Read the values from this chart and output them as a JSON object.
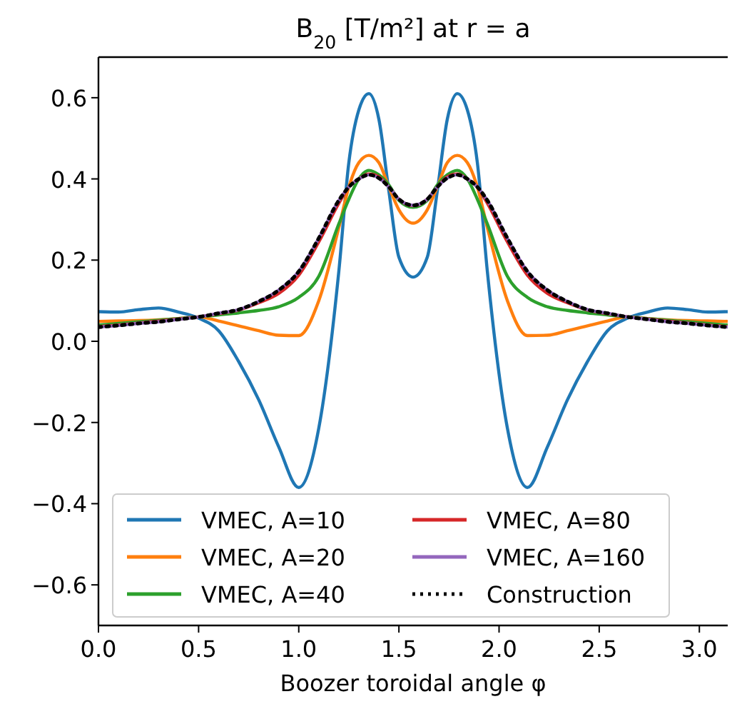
{
  "chart_data": {
    "type": "line",
    "title": "B$_{20}$ [T/m²] at r = a",
    "xlabel": "Boozer toroidal angle φ",
    "x": [
      0,
      0.1,
      0.2,
      0.3,
      0.4,
      0.5,
      0.6,
      0.7,
      0.8,
      0.9,
      1.0,
      1.1,
      1.2,
      1.25,
      1.3,
      1.35,
      1.4,
      1.45,
      1.5,
      1.5708,
      1.6416,
      1.6916,
      1.7416,
      1.7916,
      1.8416,
      1.8916,
      1.9416,
      2.0416,
      2.1416,
      2.2416,
      2.3416,
      2.4416,
      2.5416,
      2.6416,
      2.7416,
      2.8416,
      2.9416,
      3.0416,
      3.1416
    ],
    "series": [
      {
        "name": "VMEC, A=10",
        "color": "#1f77b4",
        "line_style": "solid",
        "values": [
          0.073,
          0.072,
          0.078,
          0.082,
          0.072,
          0.057,
          0.026,
          -0.05,
          -0.144,
          -0.26,
          -0.36,
          -0.214,
          0.172,
          0.44,
          0.57,
          0.61,
          0.547,
          0.37,
          0.207,
          0.158,
          0.207,
          0.37,
          0.547,
          0.61,
          0.57,
          0.44,
          0.172,
          -0.214,
          -0.36,
          -0.26,
          -0.144,
          -0.05,
          0.026,
          0.057,
          0.072,
          0.082,
          0.078,
          0.072,
          0.073
        ]
      },
      {
        "name": "VMEC, A=20",
        "color": "#ff7f0e",
        "line_style": "solid",
        "values": [
          0.049,
          0.05,
          0.051,
          0.053,
          0.056,
          0.06,
          0.05,
          0.038,
          0.026,
          0.015,
          0.014,
          0.1,
          0.28,
          0.38,
          0.44,
          0.458,
          0.44,
          0.38,
          0.324,
          0.291,
          0.324,
          0.38,
          0.44,
          0.458,
          0.44,
          0.38,
          0.28,
          0.1,
          0.014,
          0.015,
          0.026,
          0.038,
          0.05,
          0.06,
          0.056,
          0.053,
          0.051,
          0.05,
          0.049
        ]
      },
      {
        "name": "VMEC, A=40",
        "color": "#2ca02c",
        "line_style": "solid",
        "values": [
          0.04,
          0.044,
          0.048,
          0.052,
          0.056,
          0.06,
          0.065,
          0.07,
          0.076,
          0.085,
          0.108,
          0.16,
          0.289,
          0.35,
          0.4,
          0.421,
          0.41,
          0.385,
          0.347,
          0.33,
          0.347,
          0.385,
          0.41,
          0.421,
          0.4,
          0.35,
          0.289,
          0.16,
          0.108,
          0.085,
          0.076,
          0.07,
          0.065,
          0.06,
          0.056,
          0.052,
          0.048,
          0.044,
          0.04
        ]
      },
      {
        "name": "VMEC, A=80",
        "color": "#d62728",
        "line_style": "solid",
        "values": [
          0.036,
          0.04,
          0.045,
          0.05,
          0.055,
          0.06,
          0.068,
          0.077,
          0.095,
          0.118,
          0.163,
          0.245,
          0.34,
          0.38,
          0.4,
          0.412,
          0.405,
          0.38,
          0.35,
          0.334,
          0.35,
          0.38,
          0.405,
          0.412,
          0.4,
          0.38,
          0.34,
          0.245,
          0.163,
          0.118,
          0.095,
          0.077,
          0.068,
          0.06,
          0.055,
          0.05,
          0.045,
          0.04,
          0.036
        ]
      },
      {
        "name": "VMEC, A=160",
        "color": "#9467bd",
        "line_style": "solid",
        "values": [
          0.035,
          0.039,
          0.044,
          0.048,
          0.054,
          0.06,
          0.069,
          0.078,
          0.098,
          0.126,
          0.172,
          0.254,
          0.347,
          0.38,
          0.4,
          0.41,
          0.402,
          0.38,
          0.35,
          0.335,
          0.35,
          0.38,
          0.402,
          0.41,
          0.4,
          0.38,
          0.347,
          0.254,
          0.172,
          0.126,
          0.098,
          0.078,
          0.069,
          0.06,
          0.054,
          0.048,
          0.044,
          0.039,
          0.035
        ]
      },
      {
        "name": "Construction",
        "color": "#000000",
        "line_style": "dotted",
        "values": [
          0.035,
          0.039,
          0.044,
          0.048,
          0.054,
          0.06,
          0.069,
          0.078,
          0.098,
          0.126,
          0.172,
          0.254,
          0.347,
          0.38,
          0.4,
          0.41,
          0.402,
          0.38,
          0.35,
          0.335,
          0.35,
          0.38,
          0.402,
          0.41,
          0.4,
          0.38,
          0.347,
          0.254,
          0.172,
          0.126,
          0.098,
          0.078,
          0.069,
          0.06,
          0.054,
          0.048,
          0.044,
          0.039,
          0.035
        ]
      }
    ],
    "xlim": [
      0,
      3.1416
    ],
    "xticks": [
      {
        "value": 0,
        "label": "0.0"
      },
      {
        "value": 0.5,
        "label": "0.5"
      },
      {
        "value": 1,
        "label": "1.0"
      },
      {
        "value": 1.5,
        "label": "1.5"
      },
      {
        "value": 2,
        "label": "2.0"
      },
      {
        "value": 2.5,
        "label": "2.5"
      },
      {
        "value": 3,
        "label": "3.0"
      }
    ],
    "ylim": [
      -0.7,
      0.7
    ],
    "yticks": [
      {
        "value": -0.6,
        "label": "−0.6"
      },
      {
        "value": -0.4,
        "label": "−0.4"
      },
      {
        "value": -0.2,
        "label": "−0.2"
      },
      {
        "value": 0,
        "label": "0.0"
      },
      {
        "value": 0.2,
        "label": "0.2"
      },
      {
        "value": 0.4,
        "label": "0.4"
      },
      {
        "value": 0.6,
        "label": "0.6"
      }
    ],
    "grid": false,
    "legend": "bottom left",
    "marker": "none"
  }
}
